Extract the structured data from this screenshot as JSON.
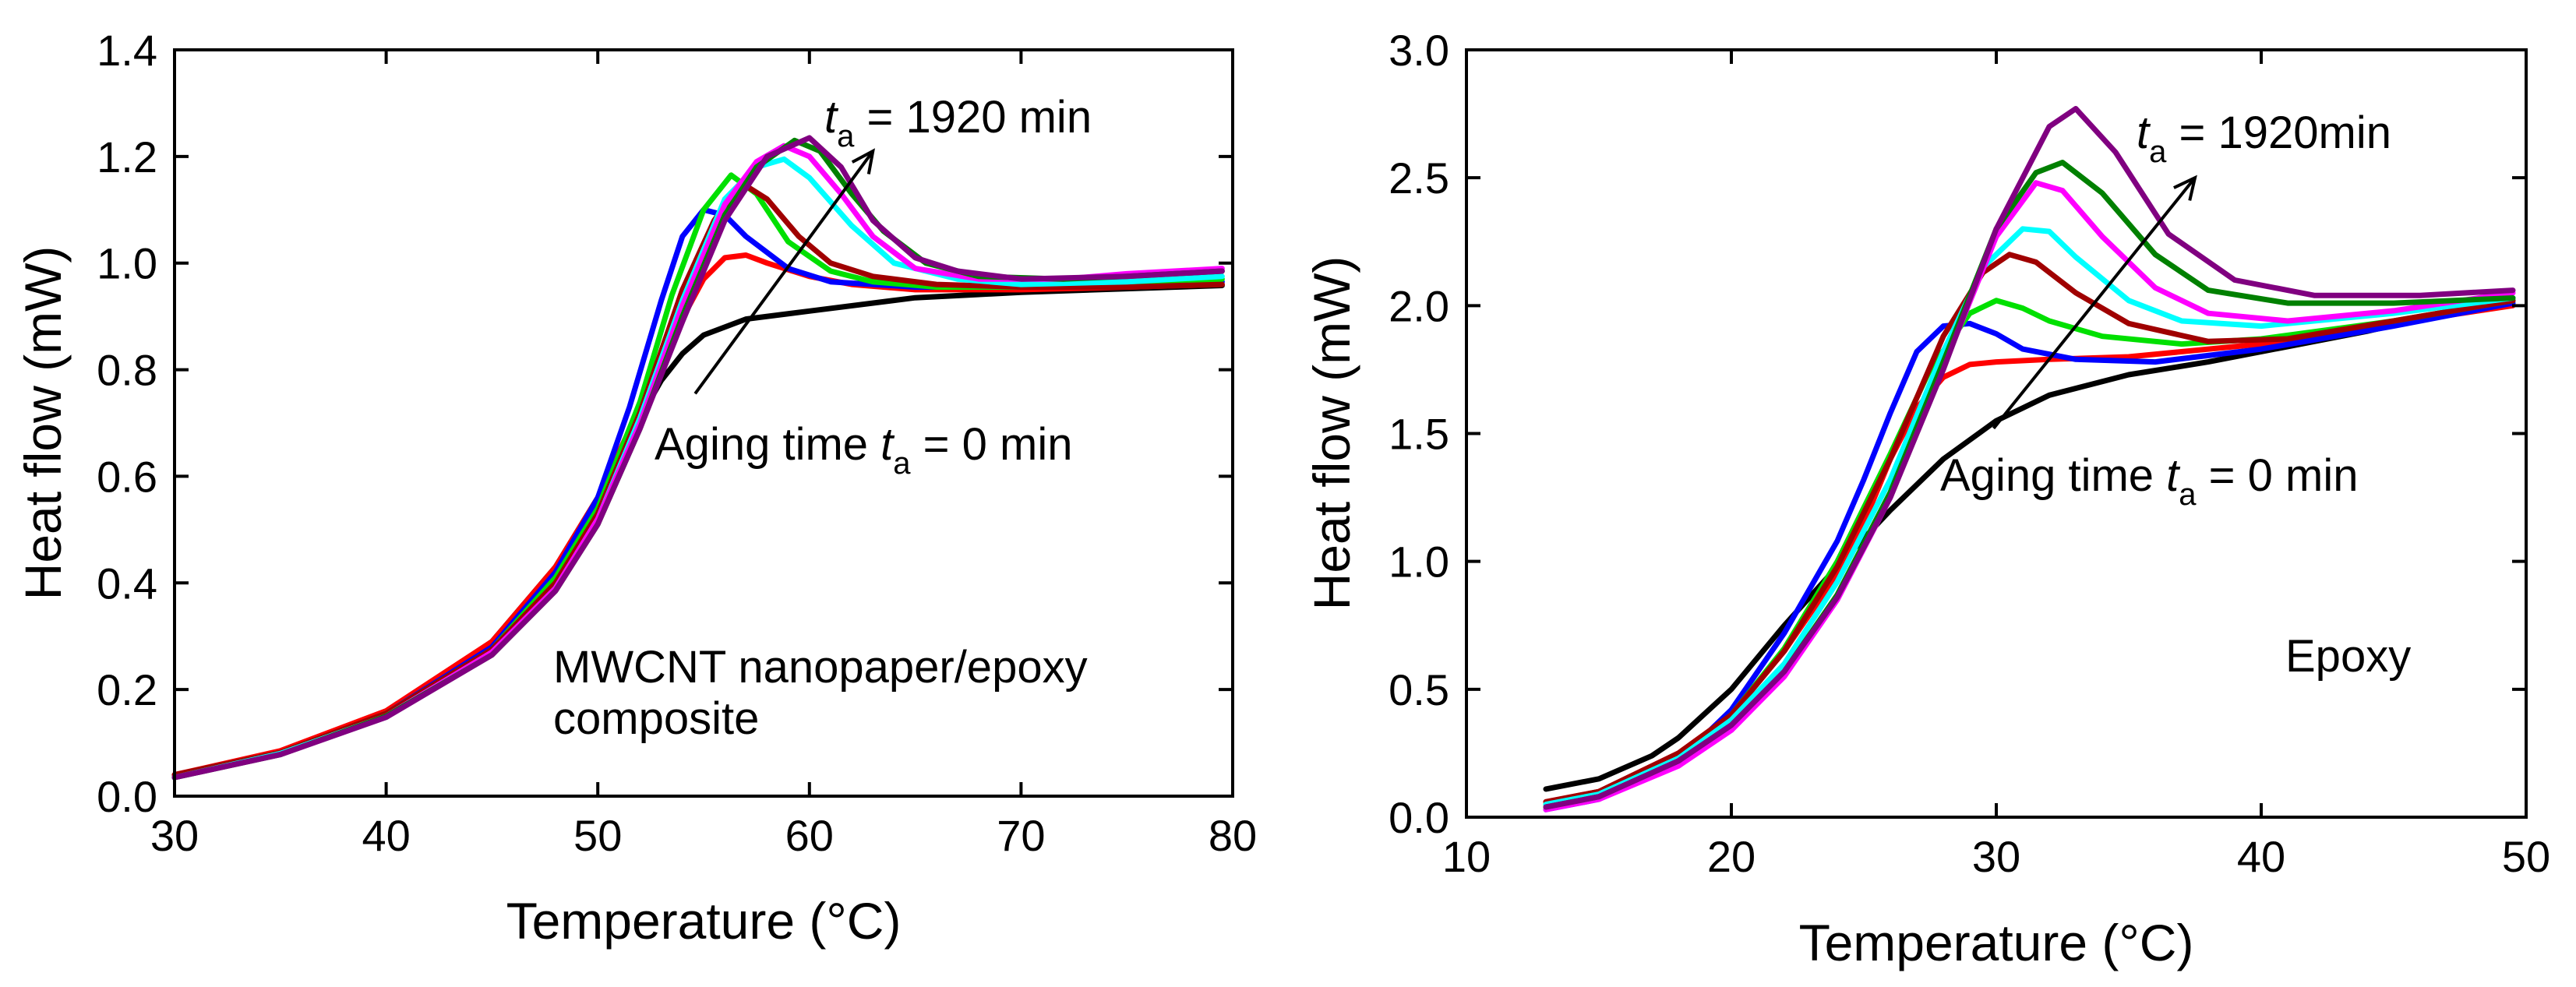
{
  "chart_data": [
    {
      "type": "line",
      "title": "",
      "xlabel": "Temperature (°C)",
      "ylabel": "Heat flow (mW)",
      "xlim": [
        30,
        80
      ],
      "ylim": [
        0.0,
        1.4
      ],
      "xticks": [
        30,
        40,
        50,
        60,
        70,
        80
      ],
      "yticks": [
        0.0,
        0.2,
        0.4,
        0.6,
        0.8,
        1.0,
        1.2,
        1.4
      ],
      "xtick_labels": [
        "30",
        "40",
        "50",
        "60",
        "70",
        "80"
      ],
      "ytick_labels": [
        "0.0",
        "0.2",
        "0.4",
        "0.6",
        "0.8",
        "1.0",
        "1.2",
        "1.4"
      ],
      "grid": false,
      "annotations": {
        "top": {
          "prefix": "t",
          "sub": "a",
          "suffix": " = 1920 min"
        },
        "bottom": {
          "prefix": "Aging time ",
          "italic": "t",
          "sub": "a",
          "suffix": " = 0 min"
        },
        "label_line1": "MWCNT nanopaper/epoxy",
        "label_line2": "composite",
        "arrow": {
          "from": [
            54.6,
            0.755
          ],
          "to": [
            63.0,
            1.21
          ]
        }
      },
      "series": [
        {
          "name": "black",
          "color": "#000000",
          "x": [
            30,
            35,
            40,
            45,
            48,
            50,
            52,
            53,
            54,
            55,
            57,
            60,
            65,
            70,
            75,
            79.5
          ],
          "y": [
            0.035,
            0.08,
            0.155,
            0.29,
            0.43,
            0.56,
            0.71,
            0.78,
            0.83,
            0.865,
            0.895,
            0.91,
            0.935,
            0.945,
            0.952,
            0.958
          ]
        },
        {
          "name": "red",
          "color": "#ff0000",
          "x": [
            30,
            35,
            40,
            45,
            48,
            50,
            52,
            53.5,
            55,
            56,
            57,
            58,
            60,
            62,
            65,
            70,
            75,
            79.5
          ],
          "y": [
            0.04,
            0.085,
            0.16,
            0.29,
            0.43,
            0.56,
            0.73,
            0.86,
            0.97,
            1.01,
            1.015,
            1.0,
            0.975,
            0.96,
            0.95,
            0.95,
            0.955,
            0.96
          ]
        },
        {
          "name": "blue",
          "color": "#0000ff",
          "x": [
            30,
            35,
            40,
            45,
            48,
            50,
            51.5,
            53,
            54,
            55,
            56,
            57,
            59,
            61,
            65,
            70,
            75,
            79.5
          ],
          "y": [
            0.035,
            0.08,
            0.155,
            0.28,
            0.42,
            0.56,
            0.73,
            0.93,
            1.05,
            1.1,
            1.09,
            1.05,
            0.99,
            0.965,
            0.955,
            0.955,
            0.96,
            0.965
          ]
        },
        {
          "name": "green",
          "color": "#00e000",
          "x": [
            30,
            35,
            40,
            45,
            48,
            50,
            52,
            53.5,
            55,
            56.3,
            57.5,
            59,
            61,
            63,
            66,
            70,
            75,
            79.5
          ],
          "y": [
            0.035,
            0.08,
            0.155,
            0.275,
            0.41,
            0.54,
            0.74,
            0.94,
            1.1,
            1.165,
            1.13,
            1.04,
            0.985,
            0.965,
            0.955,
            0.955,
            0.96,
            0.97
          ]
        },
        {
          "name": "darkred",
          "color": "#a00000",
          "x": [
            30,
            35,
            40,
            45,
            48,
            50,
            52,
            54,
            55.5,
            56.8,
            58,
            59.5,
            61,
            63,
            66,
            70,
            75,
            79.5
          ],
          "y": [
            0.04,
            0.082,
            0.155,
            0.275,
            0.4,
            0.53,
            0.72,
            0.95,
            1.08,
            1.15,
            1.12,
            1.05,
            1.0,
            0.975,
            0.96,
            0.955,
            0.955,
            0.96
          ]
        },
        {
          "name": "cyan",
          "color": "#00ffff",
          "x": [
            30,
            35,
            40,
            45,
            48,
            50,
            52,
            54,
            56,
            57.5,
            58.8,
            60,
            62,
            64,
            67,
            70,
            75,
            79.5
          ],
          "y": [
            0.035,
            0.08,
            0.15,
            0.27,
            0.39,
            0.52,
            0.71,
            0.93,
            1.12,
            1.18,
            1.195,
            1.16,
            1.07,
            1.0,
            0.97,
            0.96,
            0.965,
            0.975
          ]
        },
        {
          "name": "magenta",
          "color": "#ff00ff",
          "x": [
            30,
            35,
            40,
            45,
            48,
            50,
            52,
            54,
            56,
            57.5,
            58.8,
            60,
            61.5,
            63,
            65,
            68,
            72,
            75,
            79.5
          ],
          "y": [
            0.035,
            0.078,
            0.15,
            0.27,
            0.39,
            0.52,
            0.7,
            0.92,
            1.11,
            1.19,
            1.22,
            1.2,
            1.13,
            1.05,
            0.99,
            0.97,
            0.97,
            0.98,
            0.99
          ]
        },
        {
          "name": "darkgreen",
          "color": "#008000",
          "x": [
            30,
            35,
            40,
            45,
            48,
            50,
            52,
            54,
            56,
            57.5,
            59.3,
            60.5,
            62,
            63.5,
            65.5,
            68,
            72,
            75,
            79.5
          ],
          "y": [
            0.035,
            0.078,
            0.15,
            0.265,
            0.385,
            0.51,
            0.69,
            0.9,
            1.09,
            1.18,
            1.23,
            1.21,
            1.13,
            1.06,
            1.0,
            0.975,
            0.97,
            0.975,
            0.985
          ]
        },
        {
          "name": "purple",
          "color": "#800080",
          "x": [
            30,
            35,
            40,
            45,
            48,
            50,
            52,
            54,
            56,
            58,
            60,
            61.5,
            63,
            65,
            67,
            70,
            75,
            79.5
          ],
          "y": [
            0.035,
            0.078,
            0.148,
            0.265,
            0.385,
            0.51,
            0.69,
            0.89,
            1.08,
            1.2,
            1.235,
            1.18,
            1.08,
            1.01,
            0.985,
            0.97,
            0.975,
            0.985
          ]
        }
      ]
    },
    {
      "type": "line",
      "title": "",
      "xlabel": "Temperature (°C)",
      "ylabel": "Heat flow (mW)",
      "xlim": [
        10,
        50
      ],
      "ylim": [
        0.0,
        3.0
      ],
      "xticks": [
        10,
        20,
        30,
        40,
        50
      ],
      "yticks": [
        0.0,
        0.5,
        1.0,
        1.5,
        2.0,
        2.5,
        3.0
      ],
      "xtick_labels": [
        "10",
        "20",
        "30",
        "40",
        "50"
      ],
      "ytick_labels": [
        "0.0",
        "0.5",
        "1.0",
        "1.5",
        "2.0",
        "2.5",
        "3.0"
      ],
      "grid": false,
      "annotations": {
        "top": {
          "prefix": "t",
          "sub": "a",
          "suffix": " = 1920min"
        },
        "bottom": {
          "prefix": "Aging time ",
          "italic": "t",
          "sub": "a",
          "suffix": " = 0 min"
        },
        "label": "Epoxy",
        "arrow": {
          "from": [
            29.9,
            1.52
          ],
          "to": [
            37.5,
            2.5
          ]
        }
      },
      "series": [
        {
          "name": "black",
          "color": "#000000",
          "x": [
            13,
            15,
            17,
            18,
            20,
            22,
            24,
            26,
            28,
            30,
            32,
            35,
            38,
            41,
            44,
            47,
            49.5
          ],
          "y": [
            0.11,
            0.15,
            0.24,
            0.31,
            0.5,
            0.75,
            0.98,
            1.2,
            1.4,
            1.55,
            1.65,
            1.73,
            1.78,
            1.84,
            1.9,
            1.97,
            2.02
          ]
        },
        {
          "name": "red",
          "color": "#ff0000",
          "x": [
            13,
            15,
            18,
            20,
            22,
            24,
            25,
            26,
            27,
            28,
            29,
            30,
            32,
            35,
            40,
            45,
            49.5
          ],
          "y": [
            0.06,
            0.1,
            0.25,
            0.4,
            0.65,
            0.95,
            1.15,
            1.4,
            1.6,
            1.72,
            1.77,
            1.78,
            1.79,
            1.8,
            1.85,
            1.93,
            2.0
          ]
        },
        {
          "name": "blue",
          "color": "#0000ff",
          "x": [
            13,
            15,
            18,
            20,
            22,
            24,
            25,
            26,
            27,
            28,
            29,
            30,
            31,
            33,
            36,
            40,
            45,
            49.5
          ],
          "y": [
            0.03,
            0.07,
            0.22,
            0.42,
            0.72,
            1.08,
            1.32,
            1.58,
            1.82,
            1.92,
            1.93,
            1.89,
            1.83,
            1.79,
            1.78,
            1.83,
            1.92,
            2.01
          ]
        },
        {
          "name": "green",
          "color": "#00e000",
          "x": [
            13,
            15,
            18,
            20,
            22,
            24,
            26,
            27.5,
            29,
            30,
            31,
            32,
            34,
            37,
            40,
            45,
            49.5
          ],
          "y": [
            0.05,
            0.09,
            0.24,
            0.4,
            0.66,
            1.0,
            1.42,
            1.75,
            1.97,
            2.02,
            1.99,
            1.94,
            1.88,
            1.85,
            1.87,
            1.94,
            2.02
          ]
        },
        {
          "name": "darkred",
          "color": "#a00000",
          "x": [
            13,
            15,
            18,
            20,
            22,
            24,
            26,
            28,
            29.5,
            30.5,
            31.5,
            33,
            35,
            38,
            41,
            45,
            49.5
          ],
          "y": [
            0.06,
            0.1,
            0.25,
            0.4,
            0.65,
            0.98,
            1.4,
            1.88,
            2.13,
            2.2,
            2.17,
            2.05,
            1.93,
            1.86,
            1.87,
            1.94,
            2.02
          ]
        },
        {
          "name": "cyan",
          "color": "#00ffff",
          "x": [
            13,
            15,
            18,
            20,
            22,
            24,
            26,
            28,
            29.5,
            31,
            32,
            33,
            35,
            37,
            40,
            45,
            49.5
          ],
          "y": [
            0.05,
            0.09,
            0.23,
            0.38,
            0.6,
            0.92,
            1.32,
            1.82,
            2.15,
            2.3,
            2.29,
            2.19,
            2.02,
            1.94,
            1.92,
            1.97,
            2.03
          ]
        },
        {
          "name": "magenta",
          "color": "#ff00ff",
          "x": [
            13,
            15,
            18,
            20,
            22,
            24,
            26,
            28,
            30,
            31.5,
            32.5,
            34,
            36,
            38,
            41,
            45,
            49.5
          ],
          "y": [
            0.03,
            0.07,
            0.2,
            0.34,
            0.55,
            0.85,
            1.25,
            1.76,
            2.27,
            2.48,
            2.45,
            2.27,
            2.07,
            1.97,
            1.94,
            1.98,
            2.05
          ]
        },
        {
          "name": "darkgreen",
          "color": "#008000",
          "x": [
            13,
            15,
            18,
            20,
            22,
            24,
            26,
            28,
            30,
            31.5,
            32.5,
            34,
            36,
            38,
            41,
            45,
            49.5
          ],
          "y": [
            0.04,
            0.08,
            0.22,
            0.36,
            0.57,
            0.87,
            1.27,
            1.78,
            2.3,
            2.52,
            2.56,
            2.44,
            2.2,
            2.06,
            2.01,
            2.01,
            2.03
          ]
        },
        {
          "name": "purple",
          "color": "#800080",
          "x": [
            13,
            15,
            18,
            20,
            22,
            24,
            26,
            28,
            30,
            32,
            33,
            34.5,
            36.5,
            39,
            42,
            46,
            49.5
          ],
          "y": [
            0.04,
            0.08,
            0.22,
            0.36,
            0.57,
            0.86,
            1.25,
            1.75,
            2.3,
            2.7,
            2.77,
            2.6,
            2.28,
            2.1,
            2.04,
            2.04,
            2.06
          ]
        }
      ]
    }
  ]
}
